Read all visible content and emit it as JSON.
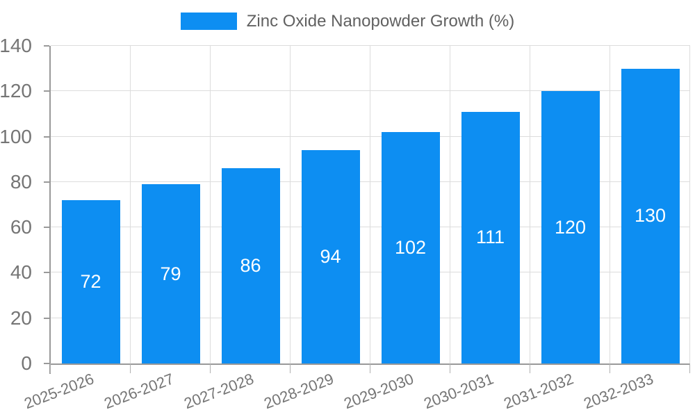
{
  "legend": {
    "label": "Zinc Oxide Nanopowder Growth (%)"
  },
  "chart_data": {
    "type": "bar",
    "title": "",
    "series_name": "Zinc Oxide Nanopowder Growth (%)",
    "categories": [
      "2025-2026",
      "2026-2027",
      "2027-2028",
      "2028-2029",
      "2029-2030",
      "2030-2031",
      "2031-2032",
      "2032-2033"
    ],
    "values": [
      72,
      79,
      86,
      94,
      102,
      111,
      120,
      130
    ],
    "value_labels": [
      "72",
      "79",
      "86",
      "94",
      "102",
      "111",
      "120",
      "130"
    ],
    "xlabel": "",
    "ylabel": "",
    "ylim": [
      0,
      140
    ],
    "ytick_step": 20,
    "ytick_labels": [
      "0",
      "20",
      "40",
      "60",
      "80",
      "100",
      "120",
      "140"
    ],
    "grid": true,
    "legend_position": "top",
    "bar_color": "#0d8ef2",
    "value_label_color": "#ffffff",
    "axis_label_color": "#757575",
    "x_label_rotation_deg": -21
  }
}
